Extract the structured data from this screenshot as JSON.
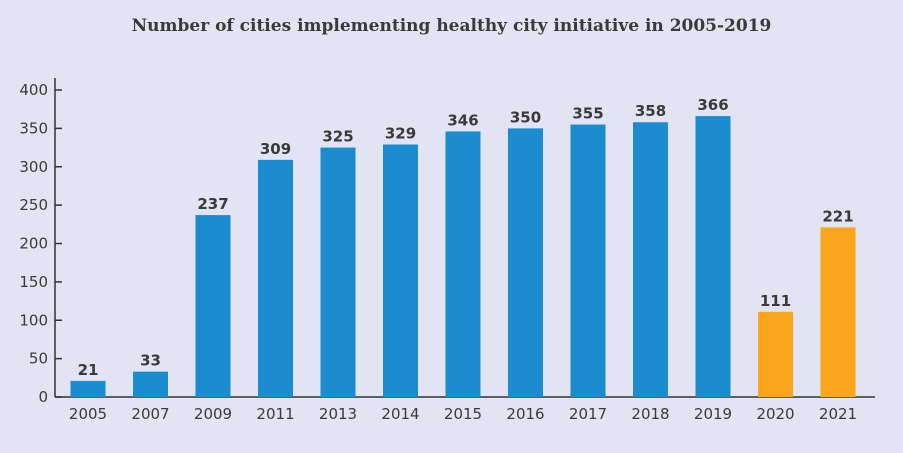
{
  "chart_data": {
    "type": "bar",
    "title": "Number of cities implementing healthy city initiative in 2005-2019",
    "categories": [
      "2005",
      "2007",
      "2009",
      "2011",
      "2013",
      "2014",
      "2015",
      "2016",
      "2017",
      "2018",
      "2019",
      "2020",
      "2021"
    ],
    "values": [
      21,
      33,
      237,
      309,
      325,
      329,
      346,
      350,
      355,
      358,
      366,
      111,
      221
    ],
    "bar_colors": [
      "#1b8ccf",
      "#1b8ccf",
      "#1b8ccf",
      "#1b8ccf",
      "#1b8ccf",
      "#1b8ccf",
      "#1b8ccf",
      "#1b8ccf",
      "#1b8ccf",
      "#1b8ccf",
      "#1b8ccf",
      "#f9a61c",
      "#f9a61c"
    ],
    "yticks": [
      0,
      50,
      100,
      150,
      200,
      250,
      300,
      350,
      400
    ],
    "ylim": [
      0,
      400
    ],
    "xlabel": "",
    "ylabel": "",
    "grid": false,
    "data_labels": true
  }
}
